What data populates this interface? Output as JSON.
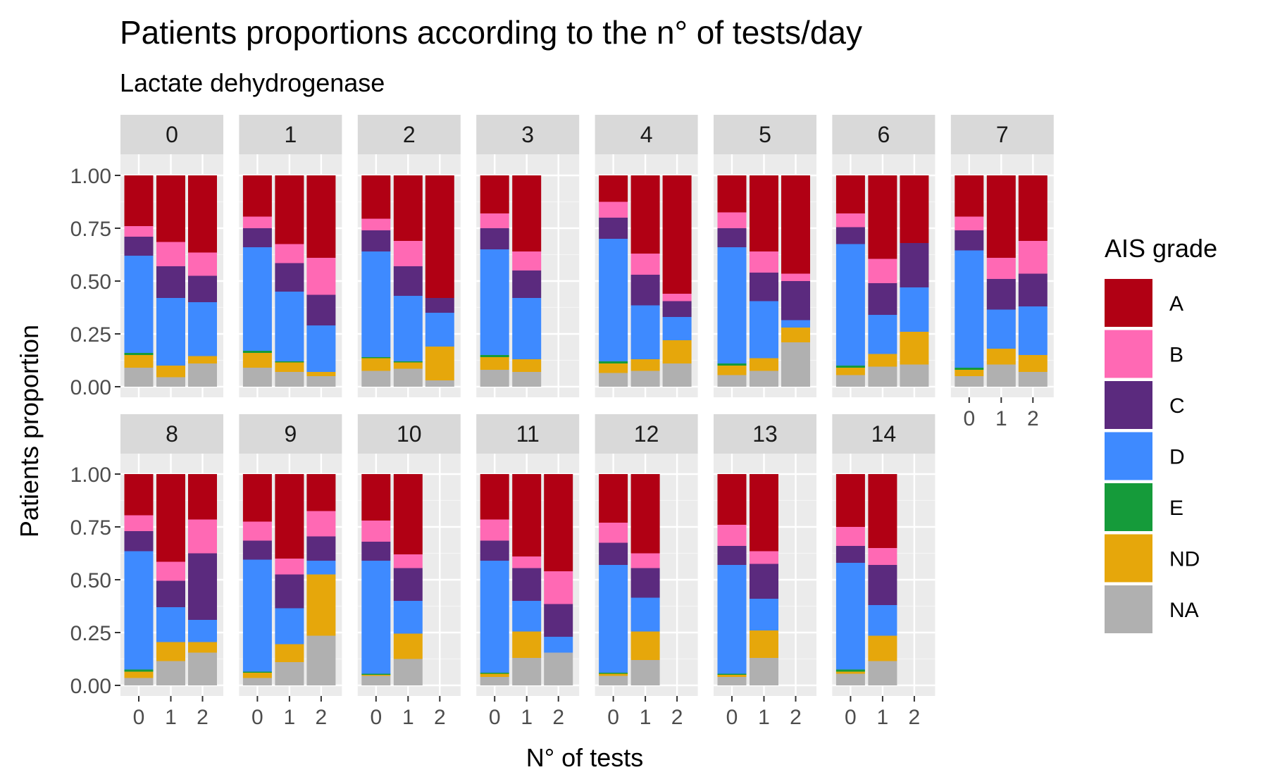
{
  "chart_data": {
    "type": "bar",
    "stacked": true,
    "title": "Patients proportions according to the n° of tests/day",
    "subtitle": "Lactate dehydrogenase",
    "xlabel": "N° of tests",
    "ylabel": "Patients proportion",
    "ylim": [
      0,
      1
    ],
    "y_ticks": [
      "0.00",
      "0.25",
      "0.50",
      "0.75",
      "1.00"
    ],
    "x_ticks": [
      "0",
      "1",
      "2"
    ],
    "legend": {
      "title": "AIS grade",
      "position": "right",
      "entries": [
        "A",
        "B",
        "C",
        "D",
        "E",
        "ND",
        "NA"
      ]
    },
    "colors": {
      "A": "#B10014",
      "B": "#FF69B4",
      "C": "#5B2A7E",
      "D": "#3E8AFF",
      "E": "#159B3A",
      "ND": "#E6A70B",
      "NA": "#B0B0B0"
    },
    "stack_order_bottom_to_top": [
      "NA",
      "ND",
      "E",
      "D",
      "C",
      "B",
      "A"
    ],
    "grid": true,
    "facets": [
      {
        "label": "0",
        "bars": [
          {
            "x": "0",
            "NA": 0.09,
            "ND": 0.06,
            "E": 0.01,
            "D": 0.46,
            "C": 0.09,
            "B": 0.05,
            "A": 0.24
          },
          {
            "x": "1",
            "NA": 0.045,
            "ND": 0.055,
            "E": 0.0,
            "D": 0.32,
            "C": 0.15,
            "B": 0.115,
            "A": 0.315
          },
          {
            "x": "2",
            "NA": 0.11,
            "ND": 0.035,
            "E": 0.0,
            "D": 0.255,
            "C": 0.125,
            "B": 0.11,
            "A": 0.365
          }
        ]
      },
      {
        "label": "1",
        "bars": [
          {
            "x": "0",
            "NA": 0.09,
            "ND": 0.07,
            "E": 0.01,
            "D": 0.49,
            "C": 0.09,
            "B": 0.055,
            "A": 0.195
          },
          {
            "x": "1",
            "NA": 0.07,
            "ND": 0.045,
            "E": 0.005,
            "D": 0.33,
            "C": 0.135,
            "B": 0.09,
            "A": 0.325
          },
          {
            "x": "2",
            "NA": 0.05,
            "ND": 0.02,
            "E": 0.0,
            "D": 0.22,
            "C": 0.145,
            "B": 0.175,
            "A": 0.39
          }
        ]
      },
      {
        "label": "2",
        "bars": [
          {
            "x": "0",
            "NA": 0.075,
            "ND": 0.06,
            "E": 0.005,
            "D": 0.5,
            "C": 0.1,
            "B": 0.055,
            "A": 0.205
          },
          {
            "x": "1",
            "NA": 0.085,
            "ND": 0.03,
            "E": 0.005,
            "D": 0.31,
            "C": 0.14,
            "B": 0.12,
            "A": 0.31
          },
          {
            "x": "2",
            "NA": 0.03,
            "ND": 0.16,
            "E": 0.0,
            "D": 0.16,
            "C": 0.07,
            "B": 0.0,
            "A": 0.58
          }
        ]
      },
      {
        "label": "3",
        "bars": [
          {
            "x": "0",
            "NA": 0.08,
            "ND": 0.06,
            "E": 0.01,
            "D": 0.5,
            "C": 0.1,
            "B": 0.07,
            "A": 0.18
          },
          {
            "x": "1",
            "NA": 0.07,
            "ND": 0.06,
            "E": 0.0,
            "D": 0.29,
            "C": 0.13,
            "B": 0.09,
            "A": 0.36
          }
        ]
      },
      {
        "label": "4",
        "bars": [
          {
            "x": "0",
            "NA": 0.065,
            "ND": 0.045,
            "E": 0.01,
            "D": 0.58,
            "C": 0.1,
            "B": 0.075,
            "A": 0.125
          },
          {
            "x": "1",
            "NA": 0.075,
            "ND": 0.055,
            "E": 0.0,
            "D": 0.255,
            "C": 0.145,
            "B": 0.1,
            "A": 0.37
          },
          {
            "x": "2",
            "NA": 0.11,
            "ND": 0.11,
            "E": 0.0,
            "D": 0.11,
            "C": 0.075,
            "B": 0.035,
            "A": 0.56
          }
        ]
      },
      {
        "label": "5",
        "bars": [
          {
            "x": "0",
            "NA": 0.055,
            "ND": 0.045,
            "E": 0.01,
            "D": 0.55,
            "C": 0.09,
            "B": 0.075,
            "A": 0.175
          },
          {
            "x": "1",
            "NA": 0.075,
            "ND": 0.06,
            "E": 0.0,
            "D": 0.27,
            "C": 0.135,
            "B": 0.1,
            "A": 0.36
          },
          {
            "x": "2",
            "NA": 0.21,
            "ND": 0.07,
            "E": 0.0,
            "D": 0.035,
            "C": 0.185,
            "B": 0.035,
            "A": 0.465
          }
        ]
      },
      {
        "label": "6",
        "bars": [
          {
            "x": "0",
            "NA": 0.055,
            "ND": 0.035,
            "E": 0.01,
            "D": 0.575,
            "C": 0.08,
            "B": 0.065,
            "A": 0.18
          },
          {
            "x": "1",
            "NA": 0.095,
            "ND": 0.06,
            "E": 0.0,
            "D": 0.185,
            "C": 0.15,
            "B": 0.115,
            "A": 0.395
          },
          {
            "x": "2",
            "NA": 0.105,
            "ND": 0.155,
            "E": 0.0,
            "D": 0.21,
            "C": 0.21,
            "B": 0.0,
            "A": 0.32
          }
        ]
      },
      {
        "label": "7",
        "bars": [
          {
            "x": "0",
            "NA": 0.05,
            "ND": 0.03,
            "E": 0.01,
            "D": 0.555,
            "C": 0.095,
            "B": 0.065,
            "A": 0.195
          },
          {
            "x": "1",
            "NA": 0.105,
            "ND": 0.075,
            "E": 0.0,
            "D": 0.185,
            "C": 0.145,
            "B": 0.1,
            "A": 0.39
          },
          {
            "x": "2",
            "NA": 0.07,
            "ND": 0.08,
            "E": 0.0,
            "D": 0.23,
            "C": 0.155,
            "B": 0.155,
            "A": 0.31
          }
        ]
      },
      {
        "label": "8",
        "bars": [
          {
            "x": "0",
            "NA": 0.035,
            "ND": 0.03,
            "E": 0.01,
            "D": 0.56,
            "C": 0.095,
            "B": 0.075,
            "A": 0.195
          },
          {
            "x": "1",
            "NA": 0.115,
            "ND": 0.09,
            "E": 0.0,
            "D": 0.165,
            "C": 0.125,
            "B": 0.09,
            "A": 0.415
          },
          {
            "x": "2",
            "NA": 0.155,
            "ND": 0.05,
            "E": 0.0,
            "D": 0.105,
            "C": 0.315,
            "B": 0.16,
            "A": 0.215
          }
        ]
      },
      {
        "label": "9",
        "bars": [
          {
            "x": "0",
            "NA": 0.035,
            "ND": 0.025,
            "E": 0.005,
            "D": 0.53,
            "C": 0.09,
            "B": 0.09,
            "A": 0.225
          },
          {
            "x": "1",
            "NA": 0.11,
            "ND": 0.085,
            "E": 0.0,
            "D": 0.17,
            "C": 0.16,
            "B": 0.075,
            "A": 0.4
          },
          {
            "x": "2",
            "NA": 0.235,
            "ND": 0.29,
            "E": 0.0,
            "D": 0.065,
            "C": 0.115,
            "B": 0.12,
            "A": 0.175
          }
        ]
      },
      {
        "label": "10",
        "bars": [
          {
            "x": "0",
            "NA": 0.045,
            "ND": 0.005,
            "E": 0.005,
            "D": 0.535,
            "C": 0.09,
            "B": 0.1,
            "A": 0.22
          },
          {
            "x": "1",
            "NA": 0.125,
            "ND": 0.12,
            "E": 0.0,
            "D": 0.155,
            "C": 0.155,
            "B": 0.065,
            "A": 0.38
          }
        ]
      },
      {
        "label": "11",
        "bars": [
          {
            "x": "0",
            "NA": 0.04,
            "ND": 0.015,
            "E": 0.005,
            "D": 0.53,
            "C": 0.095,
            "B": 0.1,
            "A": 0.215
          },
          {
            "x": "1",
            "NA": 0.13,
            "ND": 0.125,
            "E": 0.0,
            "D": 0.145,
            "C": 0.155,
            "B": 0.055,
            "A": 0.39
          },
          {
            "x": "2",
            "NA": 0.155,
            "ND": 0.0,
            "E": 0.0,
            "D": 0.075,
            "C": 0.155,
            "B": 0.155,
            "A": 0.46
          }
        ]
      },
      {
        "label": "12",
        "bars": [
          {
            "x": "0",
            "NA": 0.045,
            "ND": 0.01,
            "E": 0.005,
            "D": 0.51,
            "C": 0.105,
            "B": 0.095,
            "A": 0.23
          },
          {
            "x": "1",
            "NA": 0.12,
            "ND": 0.135,
            "E": 0.0,
            "D": 0.16,
            "C": 0.14,
            "B": 0.07,
            "A": 0.375
          }
        ]
      },
      {
        "label": "13",
        "bars": [
          {
            "x": "0",
            "NA": 0.04,
            "ND": 0.01,
            "E": 0.005,
            "D": 0.515,
            "C": 0.09,
            "B": 0.1,
            "A": 0.24
          },
          {
            "x": "1",
            "NA": 0.13,
            "ND": 0.13,
            "E": 0.0,
            "D": 0.15,
            "C": 0.165,
            "B": 0.06,
            "A": 0.365
          }
        ]
      },
      {
        "label": "14",
        "bars": [
          {
            "x": "0",
            "NA": 0.055,
            "ND": 0.01,
            "E": 0.01,
            "D": 0.505,
            "C": 0.08,
            "B": 0.09,
            "A": 0.25
          },
          {
            "x": "1",
            "NA": 0.115,
            "ND": 0.12,
            "E": 0.0,
            "D": 0.145,
            "C": 0.19,
            "B": 0.08,
            "A": 0.35
          }
        ]
      }
    ]
  }
}
